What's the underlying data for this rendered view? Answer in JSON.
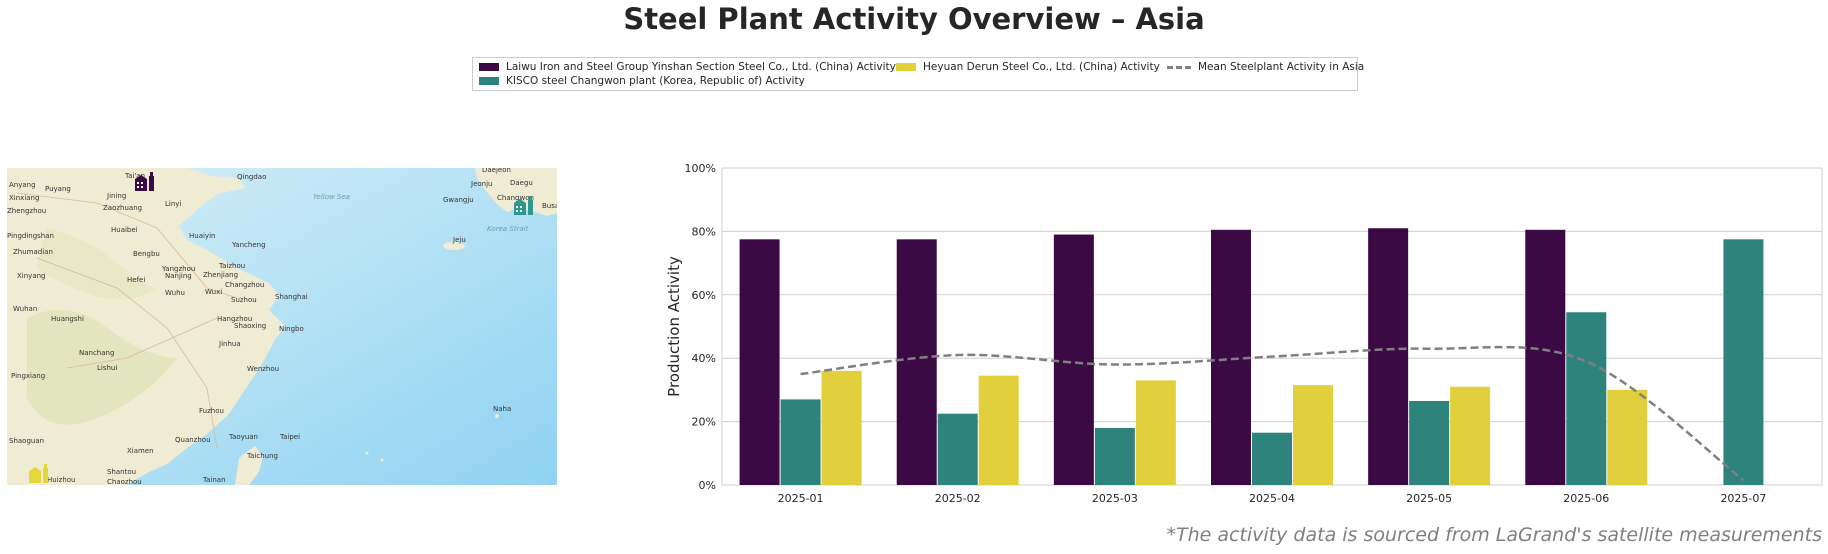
{
  "title": "Steel Plant Activity Overview – Asia",
  "legend": [
    {
      "label": "Laiwu Iron and Steel Group Yinshan Section Steel Co., Ltd. (China) Activity",
      "color": "#3b0a45"
    },
    {
      "label": "KISCO steel Changwon plant (Korea, Republic of) Activity",
      "color": "#2e837c"
    },
    {
      "label": "Heyuan Derun Steel Co., Ltd. (China) Activity",
      "color": "#e1d03b"
    },
    {
      "label": "Mean Steelplant Activity in Asia",
      "color": "#808080"
    }
  ],
  "map": {
    "sea_labels": [
      "Yellow Sea",
      "Korea Strait"
    ],
    "places": [
      "Anyang",
      "Puyang",
      "Tai'an",
      "Qingdao",
      "Daejeon",
      "Daegu",
      "Jeonju",
      "Xinxiang",
      "Jining",
      "Linyi",
      "Gwangju",
      "Changwon",
      "Busan",
      "Zhengzhou",
      "Zaozhuang",
      "Huaibei",
      "Huaiyin",
      "Jeju",
      "Pingdingshan",
      "Bengbu",
      "Yancheng",
      "Zhumadian",
      "Yangzhou",
      "Taizhou",
      "Xinyang",
      "Hefei",
      "Nanjing",
      "Zhenjiang",
      "Changzhou",
      "Wuhu",
      "Wuxi",
      "Shanghai",
      "Suzhou",
      "Wuhan",
      "Huangshi",
      "Hangzhou",
      "Shaoxing",
      "Ningbo",
      "Nanchang",
      "Jinhua",
      "Wenzhou",
      "Pingxiang",
      "Lishui",
      "Fuzhou",
      "Naha",
      "Shaoguan",
      "Quanzhou",
      "Taoyuan",
      "Taipei",
      "Xiamen",
      "Taichung",
      "Shantou",
      "Chaozhou",
      "Tainan",
      "Huizhou"
    ],
    "plant_icons": [
      "factory-icon-laiwu",
      "factory-icon-kisco",
      "factory-icon-heyuan"
    ]
  },
  "chart_data": {
    "type": "bar",
    "categories": [
      "2025-01",
      "2025-02",
      "2025-03",
      "2025-04",
      "2025-05",
      "2025-06",
      "2025-07"
    ],
    "series": [
      {
        "name": "Laiwu Iron and Steel Group Yinshan Section Steel Co., Ltd. (China) Activity",
        "color": "#3b0a45",
        "values": [
          77.5,
          77.5,
          79,
          80.5,
          81,
          80.5,
          null
        ]
      },
      {
        "name": "KISCO steel Changwon plant (Korea, Republic of) Activity",
        "color": "#2e837c",
        "values": [
          27,
          22.5,
          18,
          16.5,
          26.5,
          54.5,
          77.5
        ]
      },
      {
        "name": "Heyuan Derun Steel Co., Ltd. (China) Activity",
        "color": "#e1d03b",
        "values": [
          36,
          34.5,
          33,
          31.5,
          31,
          30,
          null
        ]
      }
    ],
    "mean_line": {
      "name": "Mean Steelplant Activity in Asia",
      "type": "line",
      "style": "dashed",
      "color": "#808080",
      "values": [
        35,
        41,
        38,
        40.5,
        43,
        39,
        1.5
      ]
    },
    "ylabel": "Production Activity",
    "ylim": [
      0,
      100
    ],
    "yticks": [
      "0%",
      "20%",
      "40%",
      "60%",
      "80%",
      "100%"
    ],
    "grid": true
  },
  "footnote": "*The activity data is sourced from LaGrand's satellite measurements"
}
